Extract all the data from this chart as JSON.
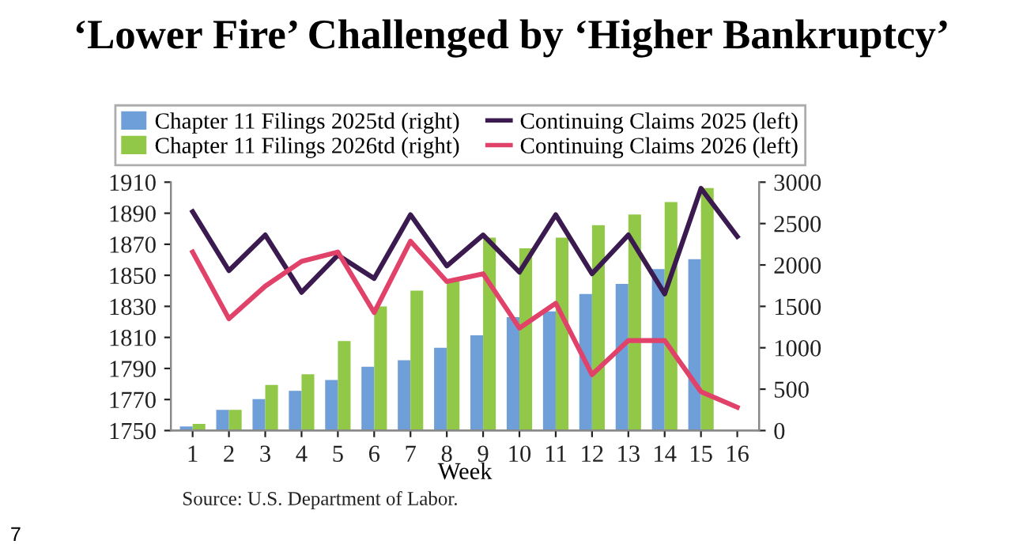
{
  "chart_data": {
    "type": "bar",
    "title": "‘Lower Fire’ Challenged by ‘Higher Bankruptcy’",
    "xlabel": "Week",
    "categories": [
      "1",
      "2",
      "3",
      "4",
      "5",
      "6",
      "7",
      "8",
      "9",
      "10",
      "11",
      "12",
      "13",
      "14",
      "15",
      "16"
    ],
    "series": [
      {
        "name": "Chapter 11 Filings 2025td (right)",
        "axis": "y2",
        "color": "#6f9fd8",
        "values": [
          50,
          250,
          380,
          480,
          610,
          770,
          850,
          1000,
          1150,
          1370,
          1440,
          1650,
          1770,
          1950,
          2070,
          null
        ]
      },
      {
        "name": "Chapter 11 Filings 2026td (right)",
        "axis": "y2",
        "color": "#92c847",
        "values": [
          80,
          250,
          550,
          680,
          1080,
          1500,
          1690,
          1820,
          2330,
          2200,
          2330,
          2480,
          2610,
          2760,
          2930,
          null
        ]
      },
      {
        "name": "Continuing Claims 2025 (left)",
        "type": "line",
        "axis": "y",
        "color": "#3a1a4f",
        "values": [
          1891,
          1853,
          1876,
          1839,
          1863,
          1848,
          1889,
          1856,
          1876,
          1852,
          1889,
          1851,
          1876,
          1838,
          1906,
          1875
        ]
      },
      {
        "name": "Continuing Claims 2026 (left)",
        "type": "line",
        "axis": "y",
        "color": "#e0426a",
        "values": [
          1865,
          1822,
          1843,
          1859,
          1865,
          1826,
          1872,
          1846,
          1851,
          1816,
          1832,
          1786,
          1808,
          1808,
          1775,
          1765
        ]
      }
    ],
    "ylim": [
      1750,
      1910
    ],
    "yticks": [
      1750,
      1770,
      1790,
      1810,
      1830,
      1850,
      1870,
      1890,
      1910
    ],
    "y2lim": [
      0,
      3000
    ],
    "y2ticks": [
      0,
      500,
      1000,
      1500,
      2000,
      2500,
      3000
    ],
    "legend": "top",
    "grid": false,
    "marker": "none",
    "line_style": "solid",
    "annotations": [
      "Source: U.S. Department of Labor.",
      "7"
    ]
  }
}
